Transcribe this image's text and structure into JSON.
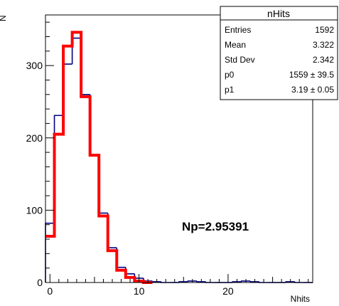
{
  "chart_data": {
    "type": "histogram",
    "xlabel": "Nhits",
    "ylabel": "N",
    "xlim": [
      -0.5,
      29.5
    ],
    "ylim": [
      0,
      370
    ],
    "x_ticks": [
      0,
      10,
      20
    ],
    "y_ticks": [
      0,
      100,
      200,
      300
    ],
    "annotation": "Np=2.95391",
    "data_histogram": {
      "bins": [
        -0.5,
        0.5,
        1.5,
        2.5,
        3.5,
        4.5,
        5.5,
        6.5,
        7.5,
        8.5,
        9.5,
        10.5,
        11.5,
        12.5,
        13.5,
        14.5,
        15.5,
        16.5,
        17.5,
        18.5,
        19.5,
        20.5,
        21.5,
        22.5,
        23.5,
        24.5,
        25.5,
        26.5,
        27.5,
        28.5,
        29.5
      ],
      "counts": [
        82,
        231,
        302,
        338,
        260,
        176,
        96,
        48,
        21,
        12,
        6,
        2,
        1,
        0,
        0,
        1,
        2,
        1,
        0,
        0,
        0,
        1,
        2,
        1,
        0,
        0,
        0,
        1,
        0,
        0
      ],
      "color": "#000080"
    },
    "fit_curve": {
      "x": [
        0,
        1,
        2,
        3,
        4,
        5,
        6,
        7,
        8,
        9,
        10,
        11
      ],
      "y": [
        64,
        205,
        327,
        346,
        257,
        176,
        92,
        44,
        17,
        7,
        2,
        0
      ],
      "color": "#ff0000"
    },
    "stats_box": {
      "title": "nHits",
      "rows": [
        {
          "label": "Entries",
          "value": "1592"
        },
        {
          "label": "Mean",
          "value": "3.322"
        },
        {
          "label": "Std Dev",
          "value": "2.342"
        },
        {
          "label": "p0",
          "value": "1559 ± 39.5"
        },
        {
          "label": "p1",
          "value": "3.19 ± 0.05"
        }
      ]
    }
  }
}
